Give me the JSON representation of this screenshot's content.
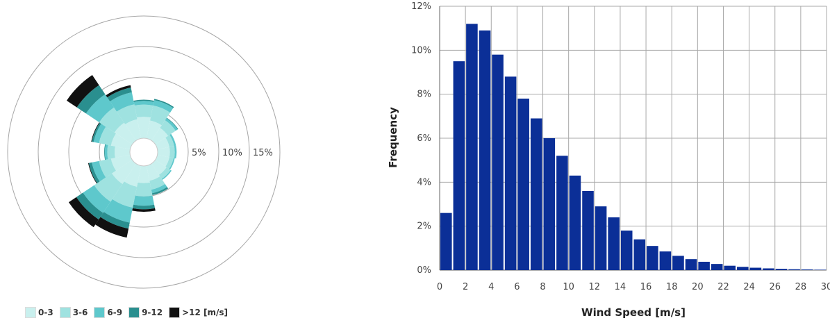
{
  "chart_data": [
    {
      "type": "wind-rose",
      "sectors": 16,
      "direction_start_deg": 0,
      "radial_ticks": [
        "5%",
        "10%",
        "15%"
      ],
      "radial_tick_values": [
        5,
        10,
        15
      ],
      "radial_max": 20,
      "bins": [
        {
          "label": "0-3",
          "color": "#c9f0ee"
        },
        {
          "label": "3-6",
          "color": "#9fe2e0"
        },
        {
          "label": "6-9",
          "color": "#5ec8cc"
        },
        {
          "label": "9-12",
          "color": "#2a8f8f"
        },
        {
          "label": ">12",
          "color": "#111111"
        }
      ],
      "legend_units": "[m/s]",
      "frequency_by_sector": [
        [
          3.5,
          2.0,
          0.6,
          0.2,
          0.0
        ],
        [
          3.0,
          2.5,
          0.9,
          0.2,
          0.0
        ],
        [
          2.5,
          1.5,
          0.4,
          0.1,
          0.0
        ],
        [
          2.0,
          0.8,
          0.3,
          0.0,
          0.0
        ],
        [
          2.0,
          0.8,
          0.3,
          0.0,
          0.0
        ],
        [
          2.0,
          0.7,
          0.2,
          0.0,
          0.0
        ],
        [
          2.2,
          0.8,
          0.2,
          0.0,
          0.0
        ],
        [
          2.5,
          1.5,
          0.6,
          0.3,
          0.0
        ],
        [
          2.8,
          2.2,
          1.5,
          0.6,
          0.4
        ],
        [
          3.5,
          3.5,
          2.5,
          1.0,
          1.5
        ],
        [
          4.0,
          3.5,
          2.2,
          1.3,
          1.5
        ],
        [
          3.2,
          2.0,
          1.2,
          0.5,
          0.1
        ],
        [
          2.5,
          1.2,
          0.4,
          0.1,
          0.0
        ],
        [
          3.2,
          2.0,
          0.9,
          0.3,
          0.1
        ],
        [
          3.5,
          3.0,
          2.6,
          1.8,
          2.0
        ],
        [
          3.2,
          2.5,
          2.0,
          0.8,
          0.4
        ]
      ]
    },
    {
      "type": "bar",
      "xlabel": "Wind Speed [m/s]",
      "ylabel": "Frequency",
      "ylim": [
        0,
        12
      ],
      "xlim": [
        0,
        30
      ],
      "x_ticks": [
        "0",
        "2",
        "4",
        "6",
        "8",
        "10",
        "12",
        "14",
        "16",
        "18",
        "20",
        "22",
        "24",
        "26",
        "28",
        "30"
      ],
      "y_ticks": [
        "0%",
        "2%",
        "4%",
        "6%",
        "8%",
        "10%",
        "12%"
      ],
      "color": "#0b2f97",
      "categories": [
        0,
        1,
        2,
        3,
        4,
        5,
        6,
        7,
        8,
        9,
        10,
        11,
        12,
        13,
        14,
        15,
        16,
        17,
        18,
        19,
        20,
        21,
        22,
        23,
        24,
        25,
        26,
        27,
        28,
        29
      ],
      "values": [
        2.6,
        9.5,
        11.2,
        10.9,
        9.8,
        8.8,
        7.8,
        6.9,
        6.0,
        5.2,
        4.3,
        3.6,
        2.9,
        2.4,
        1.8,
        1.4,
        1.1,
        0.85,
        0.65,
        0.5,
        0.38,
        0.28,
        0.2,
        0.15,
        0.11,
        0.08,
        0.06,
        0.04,
        0.03,
        0.02
      ]
    }
  ]
}
